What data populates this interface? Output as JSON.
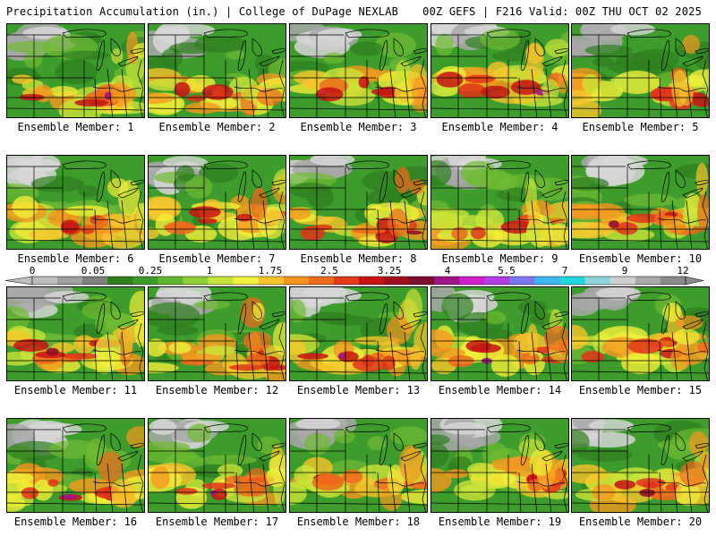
{
  "header": {
    "left": "Precipitation Accumulation (in.) | College of DuPage NEXLAB",
    "right": "00Z GEFS | F216 Valid: 00Z THU OCT 02 2025"
  },
  "colorbar": {
    "labels": [
      "0",
      "0.05",
      "0.25",
      "1",
      "1.75",
      "2.5",
      "3.25",
      "4",
      "5.5",
      "7",
      "9",
      "12"
    ],
    "colors": [
      "#bdbdbd",
      "#a0a0a0",
      "#7f7f7f",
      "#2f7f20",
      "#3d9c2c",
      "#62b530",
      "#8dcf37",
      "#c5e33b",
      "#f2f23c",
      "#f5c52c",
      "#f59420",
      "#ef6b1c",
      "#e23b1a",
      "#c81414",
      "#a00f1e",
      "#7a0f2e",
      "#a0158a",
      "#d01ec8",
      "#b33ee8",
      "#7a78ee",
      "#3fb7f0",
      "#25d8e0",
      "#8fd6dc",
      "#cfcfcf",
      "#a9a9a9",
      "#8a8a8a"
    ]
  },
  "panels": [
    {
      "label": "Ensemble Member: 1"
    },
    {
      "label": "Ensemble Member: 2"
    },
    {
      "label": "Ensemble Member: 3"
    },
    {
      "label": "Ensemble Member: 4"
    },
    {
      "label": "Ensemble Member: 5"
    },
    {
      "label": "Ensemble Member: 6"
    },
    {
      "label": "Ensemble Member: 7"
    },
    {
      "label": "Ensemble Member: 8"
    },
    {
      "label": "Ensemble Member: 9"
    },
    {
      "label": "Ensemble Member: 10"
    },
    {
      "label": "Ensemble Member: 11"
    },
    {
      "label": "Ensemble Member: 12"
    },
    {
      "label": "Ensemble Member: 13"
    },
    {
      "label": "Ensemble Member: 14"
    },
    {
      "label": "Ensemble Member: 15"
    },
    {
      "label": "Ensemble Member: 16"
    },
    {
      "label": "Ensemble Member: 17"
    },
    {
      "label": "Ensemble Member: 18"
    },
    {
      "label": "Ensemble Member: 19"
    },
    {
      "label": "Ensemble Member: 20"
    }
  ]
}
